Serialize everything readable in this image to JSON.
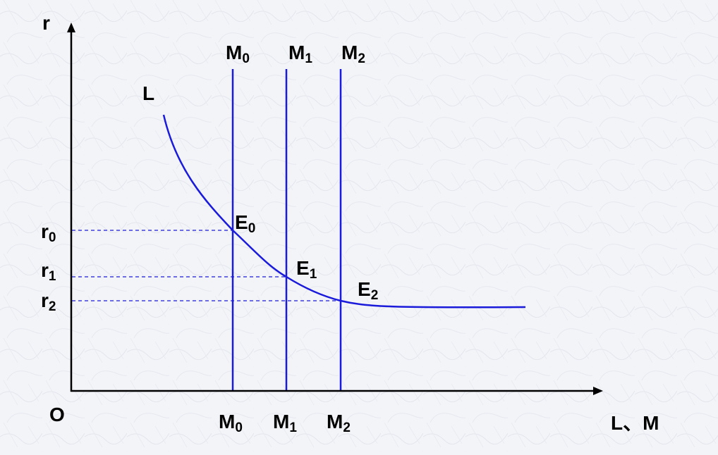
{
  "axes": {
    "y_label": "r",
    "x_label": "L、M",
    "origin_label": "O"
  },
  "curve": {
    "name": "L",
    "color": "#1a1adb"
  },
  "money_supply_lines": [
    {
      "base": "M",
      "sub": "0"
    },
    {
      "base": "M",
      "sub": "1"
    },
    {
      "base": "M",
      "sub": "2"
    }
  ],
  "equilibria": [
    {
      "base": "E",
      "sub": "0"
    },
    {
      "base": "E",
      "sub": "1"
    },
    {
      "base": "E",
      "sub": "2"
    }
  ],
  "rates": [
    {
      "base": "r",
      "sub": "0"
    },
    {
      "base": "r",
      "sub": "1"
    },
    {
      "base": "r",
      "sub": "2"
    }
  ],
  "colors": {
    "curve": "#1a1adb",
    "guides": "#1a1adb",
    "axes": "#000000",
    "background": "#f3f4f8"
  }
}
